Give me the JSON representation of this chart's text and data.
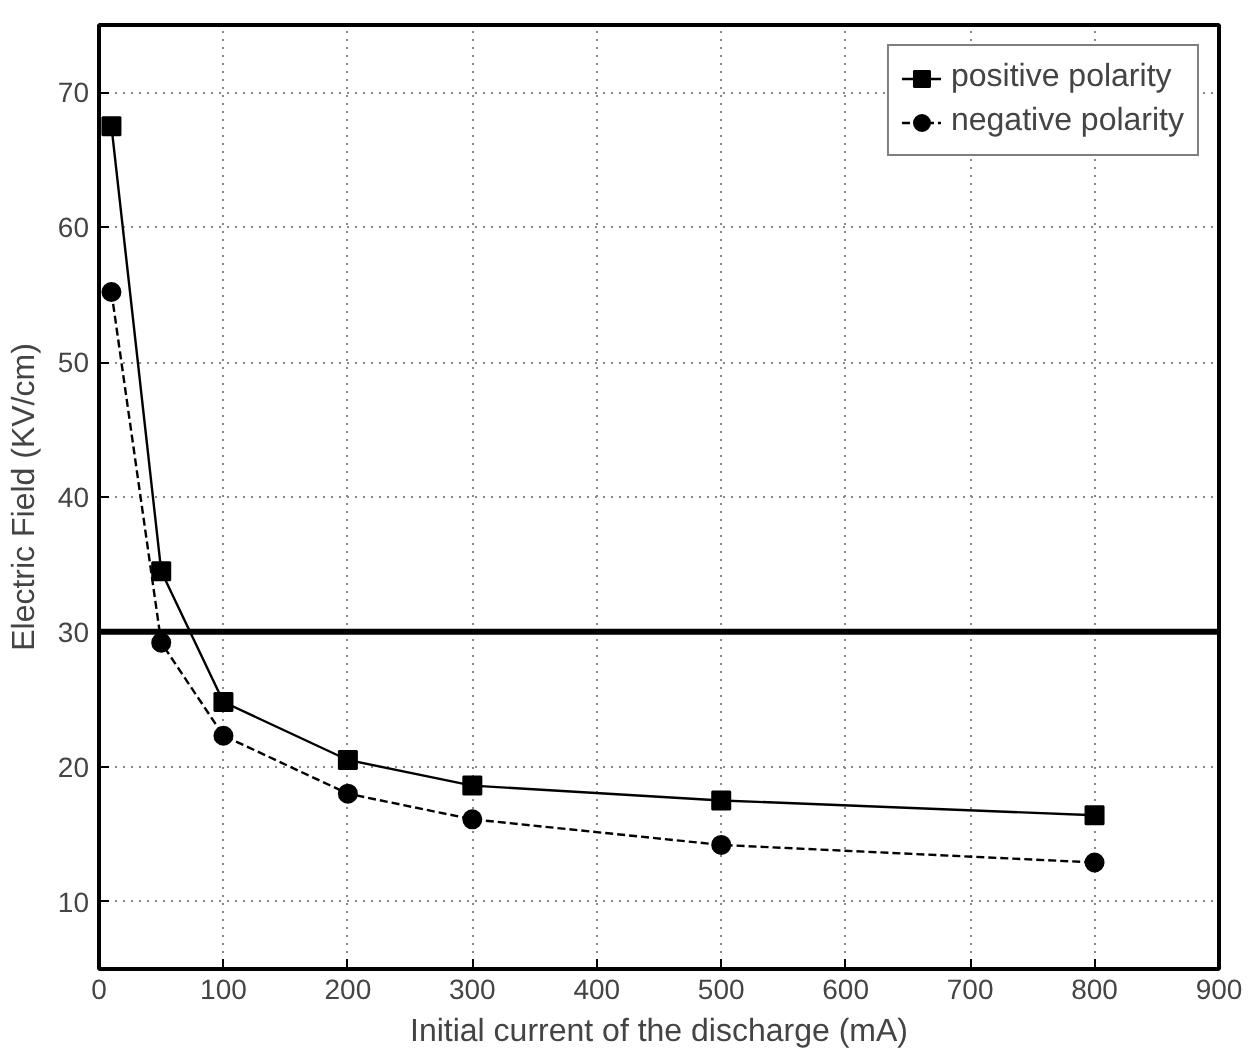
{
  "chart_data": {
    "type": "line",
    "xlabel": "Initial current of the discharge (mA)",
    "ylabel": "Electric Field (KV/cm)",
    "x": [
      10,
      50,
      100,
      200,
      300,
      500,
      800
    ],
    "series": [
      {
        "name": "positive polarity",
        "color": "#000000",
        "marker": "square",
        "line_style": "solid",
        "values": [
          67.5,
          34.5,
          24.8,
          20.5,
          18.6,
          17.5,
          16.4
        ]
      },
      {
        "name": "negative polarity",
        "color": "#000000",
        "marker": "circle",
        "line_style": "dashed",
        "values": [
          55.2,
          29.2,
          22.3,
          18.0,
          16.1,
          14.2,
          12.9
        ]
      }
    ],
    "xlim": [
      0,
      900
    ],
    "xticks": [
      0,
      100,
      200,
      300,
      400,
      500,
      600,
      700,
      800,
      900
    ],
    "ylim": [
      5,
      75
    ],
    "yticks": [
      10,
      20,
      30,
      40,
      50,
      60,
      70
    ],
    "ref_lines": [
      {
        "axis": "y",
        "value": 30,
        "color": "#000000"
      }
    ],
    "grid": true,
    "legend": "top right"
  }
}
